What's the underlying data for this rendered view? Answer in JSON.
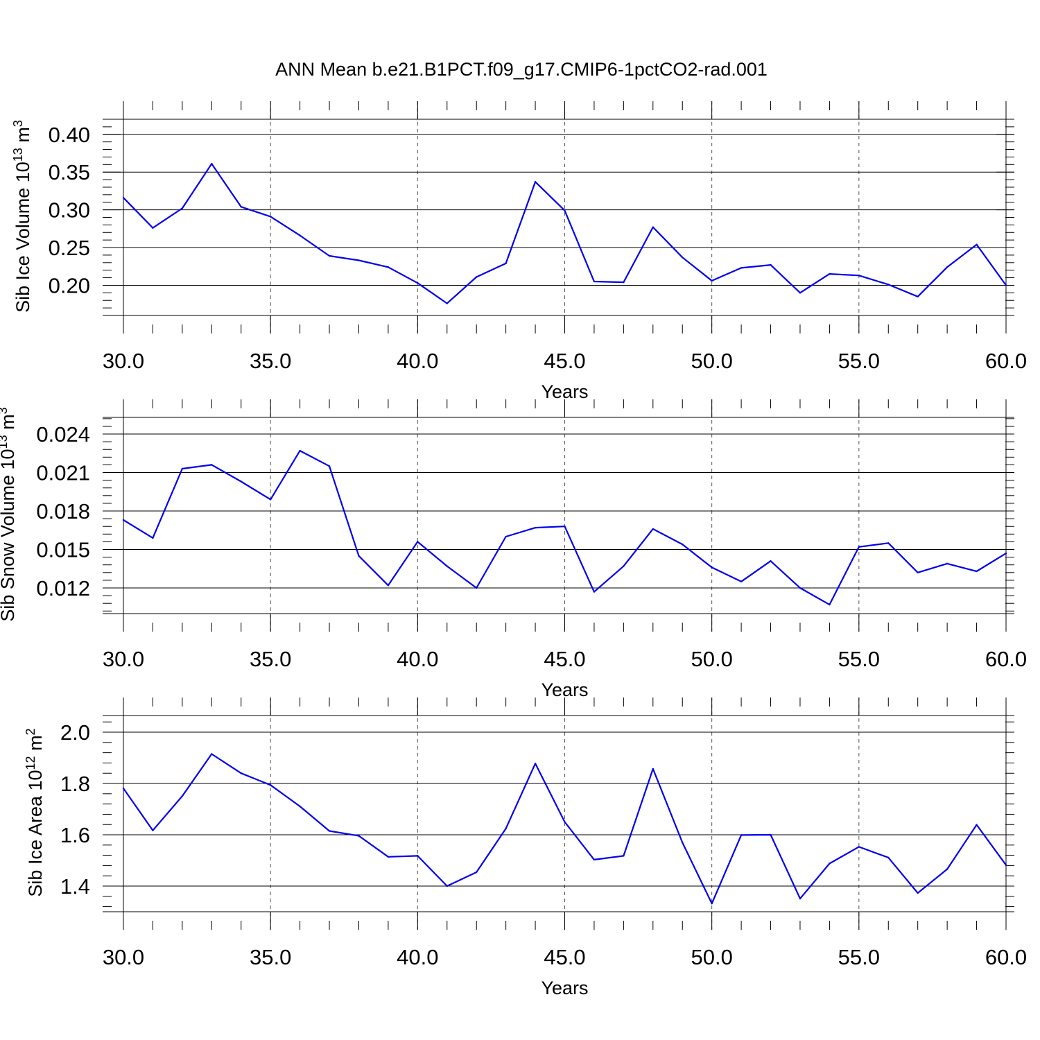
{
  "title": "ANN Mean b.e21.B1PCT.f09_g17.CMIP6-1pctCO2-rad.001",
  "colors": {
    "line": "#0000ee",
    "axis": "#000000",
    "grid": "#555555"
  },
  "chart_data": [
    {
      "type": "line",
      "ylabel_text": "Sib Ice Volume 10",
      "ylabel_exponent": "13",
      "ylabel_unit": "m",
      "ylabel_unit_exponent": "3",
      "xlabel": "Years",
      "xlim": [
        30,
        60
      ],
      "ylim": [
        0.16,
        0.42
      ],
      "x_ticks": [
        "30.0",
        "35.0",
        "40.0",
        "45.0",
        "50.0",
        "55.0",
        "60.0"
      ],
      "y_ticks": [
        "0.20",
        "0.25",
        "0.30",
        "0.35",
        "0.40"
      ],
      "grid": "vertical dashed at major x ticks",
      "x": [
        30,
        31,
        32,
        33,
        34,
        35,
        36,
        37,
        38,
        39,
        40,
        41,
        42,
        43,
        44,
        45,
        46,
        47,
        48,
        49,
        50,
        51,
        52,
        53,
        54,
        55,
        56,
        57,
        58,
        59,
        60
      ],
      "values": [
        0.316,
        0.276,
        0.302,
        0.361,
        0.304,
        0.291,
        0.266,
        0.239,
        0.233,
        0.224,
        0.203,
        0.176,
        0.211,
        0.229,
        0.337,
        0.299,
        0.205,
        0.204,
        0.277,
        0.237,
        0.206,
        0.223,
        0.227,
        0.19,
        0.215,
        0.213,
        0.201,
        0.185,
        0.224,
        0.254,
        0.2
      ]
    },
    {
      "type": "line",
      "ylabel_text": "Sib Snow Volume 10",
      "ylabel_exponent": "13",
      "ylabel_unit": "m",
      "ylabel_unit_exponent": "3",
      "xlabel": "Years",
      "xlim": [
        30,
        60
      ],
      "ylim": [
        0.01,
        0.0253
      ],
      "x_ticks": [
        "30.0",
        "35.0",
        "40.0",
        "45.0",
        "50.0",
        "55.0",
        "60.0"
      ],
      "y_ticks": [
        "0.012",
        "0.015",
        "0.018",
        "0.021",
        "0.024"
      ],
      "grid": "vertical dashed at major x ticks",
      "x": [
        30,
        31,
        32,
        33,
        34,
        35,
        36,
        37,
        38,
        39,
        40,
        41,
        42,
        43,
        44,
        45,
        46,
        47,
        48,
        49,
        50,
        51,
        52,
        53,
        54,
        55,
        56,
        57,
        58,
        59,
        60
      ],
      "values": [
        0.0173,
        0.0159,
        0.0213,
        0.0216,
        0.0203,
        0.0189,
        0.0227,
        0.0215,
        0.0145,
        0.0122,
        0.0156,
        0.0137,
        0.012,
        0.016,
        0.0167,
        0.0168,
        0.0117,
        0.0137,
        0.0166,
        0.0154,
        0.0136,
        0.0125,
        0.0141,
        0.012,
        0.0107,
        0.0152,
        0.0155,
        0.0132,
        0.0139,
        0.0133,
        0.0147
      ]
    },
    {
      "type": "line",
      "ylabel_text": "Sib Ice Area 10",
      "ylabel_exponent": "12",
      "ylabel_unit": "m",
      "ylabel_unit_exponent": "2",
      "xlabel": "Years",
      "xlim": [
        30,
        60
      ],
      "ylim": [
        1.3,
        2.065
      ],
      "x_ticks": [
        "30.0",
        "35.0",
        "40.0",
        "45.0",
        "50.0",
        "55.0",
        "60.0"
      ],
      "y_ticks": [
        "1.4",
        "1.6",
        "1.8",
        "2.0"
      ],
      "grid": "vertical dashed at major x ticks",
      "x": [
        30,
        31,
        32,
        33,
        34,
        35,
        36,
        37,
        38,
        39,
        40,
        41,
        42,
        43,
        44,
        45,
        46,
        47,
        48,
        49,
        50,
        51,
        52,
        53,
        54,
        55,
        56,
        57,
        58,
        59,
        60
      ],
      "values": [
        1.781,
        1.617,
        1.751,
        1.915,
        1.84,
        1.794,
        1.711,
        1.615,
        1.596,
        1.514,
        1.518,
        1.4,
        1.454,
        1.624,
        1.878,
        1.65,
        1.503,
        1.518,
        1.857,
        1.57,
        1.332,
        1.599,
        1.6,
        1.351,
        1.488,
        1.553,
        1.511,
        1.373,
        1.466,
        1.639,
        1.482
      ]
    }
  ]
}
